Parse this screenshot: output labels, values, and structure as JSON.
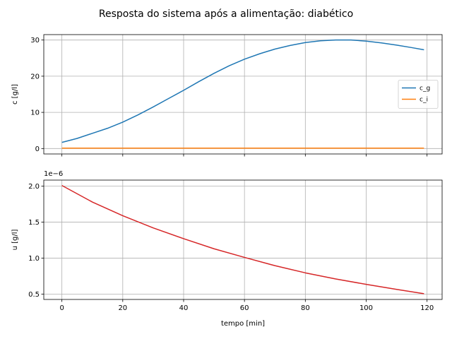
{
  "chart_data": [
    {
      "type": "line",
      "title": "Resposta do sistema após a alimentação: diabético",
      "xlabel": "",
      "ylabel": "c [g/l]",
      "xlim": [
        -5.95,
        124.95
      ],
      "ylim": [
        -1.5,
        31.5
      ],
      "xticks": [
        0,
        20,
        40,
        60,
        80,
        100,
        120
      ],
      "xtick_labels": [
        "",
        "",
        "",
        "",
        "",
        "",
        ""
      ],
      "yticks": [
        0,
        10,
        20,
        30
      ],
      "ytick_labels": [
        "0",
        "10",
        "20",
        "30"
      ],
      "grid": true,
      "legend": "center-right",
      "series": [
        {
          "name": "c_g",
          "color": "#1f77b4",
          "x": [
            0,
            5,
            10,
            15,
            20,
            25,
            30,
            35,
            40,
            45,
            50,
            55,
            60,
            65,
            70,
            75,
            80,
            85,
            90,
            95,
            100,
            105,
            110,
            115,
            119
          ],
          "y": [
            1.7,
            2.8,
            4.2,
            5.6,
            7.3,
            9.3,
            11.5,
            13.8,
            16.1,
            18.5,
            20.8,
            22.9,
            24.7,
            26.2,
            27.5,
            28.5,
            29.3,
            29.8,
            30.0,
            30.0,
            29.7,
            29.2,
            28.6,
            27.9,
            27.3
          ]
        },
        {
          "name": "c_i",
          "color": "#ff7f0e",
          "x": [
            0,
            20,
            40,
            60,
            80,
            100,
            119
          ],
          "y": [
            0.1,
            0.1,
            0.1,
            0.1,
            0.1,
            0.1,
            0.1
          ]
        }
      ]
    },
    {
      "type": "line",
      "title": "",
      "xlabel": "tempo [min]",
      "ylabel": "u [g/l]",
      "offset_text": "1e−6",
      "xlim": [
        -5.95,
        124.95
      ],
      "ylim": [
        0.425,
        2.085
      ],
      "xticks": [
        0,
        20,
        40,
        60,
        80,
        100,
        120
      ],
      "xtick_labels": [
        "0",
        "20",
        "40",
        "60",
        "80",
        "100",
        "120"
      ],
      "yticks": [
        0.5,
        1.0,
        1.5,
        2.0
      ],
      "ytick_labels": [
        "0.5",
        "1.0",
        "1.5",
        "2.0"
      ],
      "grid": true,
      "series": [
        {
          "color": "#d62728",
          "x": [
            0,
            10,
            20,
            30,
            40,
            50,
            60,
            70,
            80,
            90,
            100,
            110,
            119
          ],
          "y": [
            2.01,
            1.78,
            1.59,
            1.42,
            1.27,
            1.13,
            1.01,
            0.895,
            0.795,
            0.71,
            0.635,
            0.565,
            0.505
          ]
        }
      ]
    }
  ]
}
